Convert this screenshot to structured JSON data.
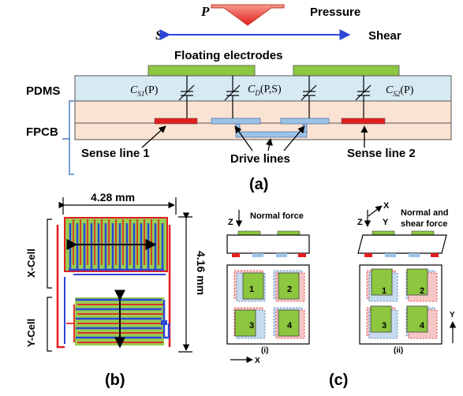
{
  "panel_a": {
    "p_label": "P",
    "pressure_label": "Pressure",
    "s_label": "S",
    "shear_label": "Shear",
    "floating_label": "Floating electrodes",
    "pdms_label": "PDMS",
    "fpcb_label": "FPCB",
    "cap_s1": "C",
    "cap_s1_sub": "S1",
    "cap_s1_arg": "(P)",
    "cap_d": "C",
    "cap_d_sub": "D",
    "cap_d_arg": "(P,S)",
    "cap_s2": "C",
    "cap_s2_sub": "S2",
    "cap_s2_arg": "(P)",
    "sense1": "Sense line 1",
    "drive": "Drive lines",
    "sense2": "Sense line 2",
    "caption": "(a)"
  },
  "panel_b": {
    "width_label": "4.28 mm",
    "height_label": "4.16 mm",
    "x_cell": "X-Cell",
    "y_cell": "Y-Cell",
    "caption": "(b)"
  },
  "panel_c": {
    "z1": "Z",
    "normal_force": "Normal force",
    "x_axis": "X",
    "y_axis": "Y",
    "z2": "Z",
    "normal_shear_1": "Normal and",
    "normal_shear_2": "shear force",
    "cells": [
      "1",
      "2",
      "3",
      "4"
    ],
    "sub_i": "(i)",
    "sub_ii": "(ii)",
    "bottom_x": "X",
    "right_y": "Y",
    "caption": "(c)"
  },
  "colors": {
    "red": "#e31e1e",
    "green": "#8dc63f",
    "blue_arrow": "#2b46d6",
    "pdms": "#d7eaf3",
    "fpcb": "#fbe3d3",
    "drive_blue": "#9cc2e5"
  }
}
